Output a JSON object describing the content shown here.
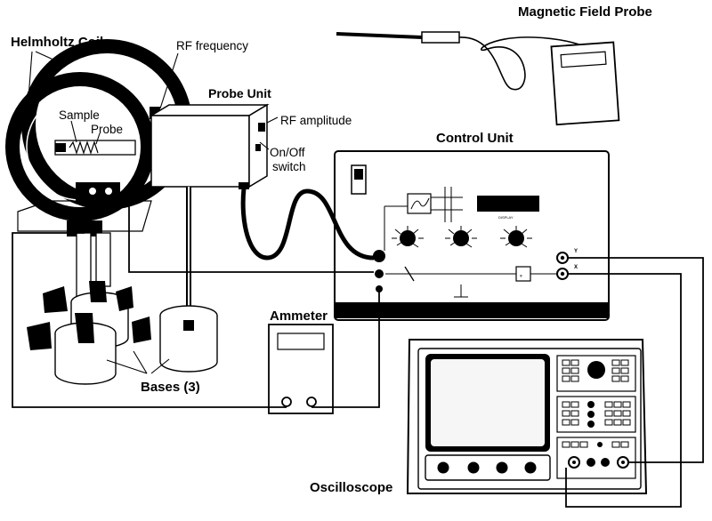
{
  "labels": {
    "helmholtz_coils": "Helmholtz Coils",
    "rf_frequency": "RF frequency",
    "probe_unit": "Probe Unit",
    "rf_amplitude": "RF amplitude",
    "sample": "Sample",
    "probe": "Probe",
    "on_off_line1": "On/Off",
    "on_off_line2": "switch",
    "control_unit": "Control Unit",
    "magnetic_field_probe": "Magnetic Field Probe",
    "ammeter": "Ammeter",
    "bases": "Bases (3)",
    "oscilloscope": "Oscilloscope",
    "channel_y": "Y",
    "channel_x": "X"
  },
  "colors": {
    "ink": "#000000",
    "paper": "#ffffff",
    "panel": "#f2f2f2",
    "screen": "#f6f6f6"
  }
}
